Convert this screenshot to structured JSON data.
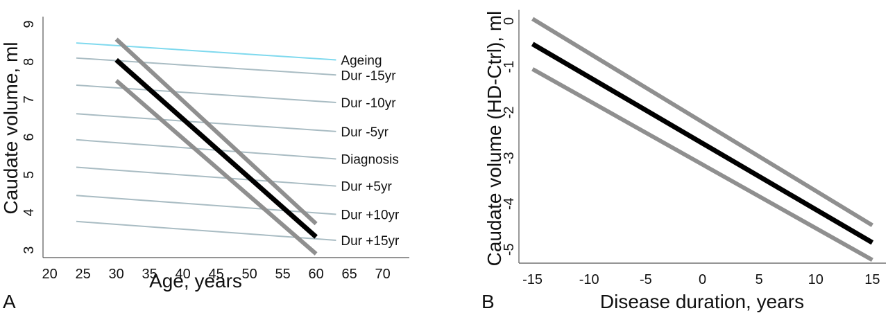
{
  "figure": {
    "background": "#ffffff"
  },
  "chart_data": [
    {
      "type": "line",
      "panel_label": "A",
      "xlabel": "Age, years",
      "ylabel": "Caudate volume, ml",
      "xlim": [
        19,
        74
      ],
      "ylim": [
        2.8,
        9.2
      ],
      "x_ticks": [
        20,
        25,
        30,
        35,
        40,
        45,
        50,
        55,
        60,
        65,
        70
      ],
      "y_ticks": [
        3,
        4,
        5,
        6,
        7,
        8,
        9
      ],
      "colors": {
        "reference": "#a9bcc3",
        "ageing": "#7fd9ee",
        "ci": "#8f8f8f",
        "fit": "#000000"
      },
      "series": [
        {
          "name": "Ageing",
          "role": "reference",
          "x": [
            24,
            63
          ],
          "y": [
            8.5,
            8.05
          ]
        },
        {
          "name": "Dur -15yr",
          "role": "reference",
          "x": [
            24,
            63
          ],
          "y": [
            8.1,
            7.65
          ]
        },
        {
          "name": "Dur -10yr",
          "role": "reference",
          "x": [
            24,
            63
          ],
          "y": [
            7.38,
            6.92
          ]
        },
        {
          "name": "Dur -5yr",
          "role": "reference",
          "x": [
            24,
            63
          ],
          "y": [
            6.62,
            6.15
          ]
        },
        {
          "name": "Diagnosis",
          "role": "reference",
          "x": [
            24,
            63
          ],
          "y": [
            5.93,
            5.42
          ]
        },
        {
          "name": "Dur +5yr",
          "role": "reference",
          "x": [
            24,
            63
          ],
          "y": [
            5.2,
            4.7
          ]
        },
        {
          "name": "Dur +10yr",
          "role": "reference",
          "x": [
            24,
            63
          ],
          "y": [
            4.45,
            3.95
          ]
        },
        {
          "name": "Dur +15yr",
          "role": "reference",
          "x": [
            24,
            63
          ],
          "y": [
            3.76,
            3.26
          ]
        },
        {
          "role": "ci_upper",
          "x": [
            30,
            60
          ],
          "y": [
            8.6,
            3.7
          ]
        },
        {
          "role": "fit",
          "x": [
            30,
            60
          ],
          "y": [
            8.05,
            3.35
          ]
        },
        {
          "role": "ci_lower",
          "x": [
            30,
            60
          ],
          "y": [
            7.5,
            2.9
          ]
        }
      ]
    },
    {
      "type": "line",
      "panel_label": "B",
      "xlabel": "Disease duration, years",
      "ylabel": "Caudate volume (HD-Ctrl), ml",
      "xlim": [
        -16.2,
        16.2
      ],
      "ylim": [
        -5.3,
        0.25
      ],
      "x_ticks": [
        -15,
        -10,
        -5,
        0,
        5,
        10,
        15
      ],
      "x_tick_labels": [
        "-15",
        "-10",
        "-5",
        "0",
        "5",
        "10",
        "15"
      ],
      "y_ticks": [
        -5,
        -4,
        -3,
        -2,
        -1,
        0
      ],
      "y_tick_labels": [
        "-5",
        "-4",
        "-3",
        "-2",
        "-1",
        "0"
      ],
      "colors": {
        "ci": "#8f8f8f",
        "fit": "#000000"
      },
      "series": [
        {
          "role": "ci_upper",
          "x": [
            -15,
            15
          ],
          "y": [
            0.05,
            -4.47
          ]
        },
        {
          "role": "fit",
          "x": [
            -15,
            15
          ],
          "y": [
            -0.5,
            -4.85
          ]
        },
        {
          "role": "ci_lower",
          "x": [
            -15,
            15
          ],
          "y": [
            -1.05,
            -5.23
          ]
        }
      ]
    }
  ]
}
